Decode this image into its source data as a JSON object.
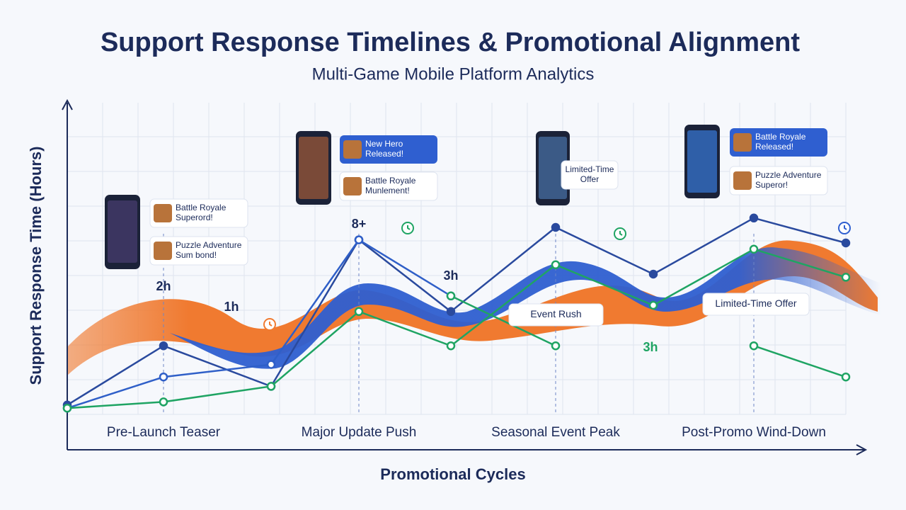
{
  "chart_data": {
    "type": "line",
    "title": "Support Response Timelines & Promotional Alignment",
    "subtitle": "Multi-Game Mobile Platform Analytics",
    "x_label": "Promotional Cycles",
    "y_label": "Support Response Time (Hours)",
    "categories": [
      null,
      "Pre-Launch Teaser",
      null,
      "Major Update Push",
      null,
      "Seasonal Event Peak",
      null,
      "Post-Promo Wind-Down",
      null
    ],
    "ylim": [
      0,
      10
    ],
    "grid": true,
    "series": [
      {
        "color": "#2a4a9e",
        "values": [
          0.3,
          2.2,
          0.9,
          5.6,
          3.3,
          6.0,
          4.5,
          6.3,
          5.5
        ]
      },
      {
        "color": "#2f5fc8",
        "values": [
          0.2,
          1.2,
          1.6,
          5.6,
          3.8,
          null,
          null,
          null,
          null
        ]
      },
      {
        "color": "#1fa463",
        "values": [
          0.2,
          0.4,
          0.9,
          3.3,
          2.2,
          4.8,
          3.5,
          5.3,
          4.4
        ]
      },
      {
        "color": "#1fa463",
        "values": [
          null,
          null,
          null,
          null,
          3.8,
          2.2,
          null,
          2.2,
          1.2
        ]
      }
    ],
    "annotations": [
      "2h",
      "1h",
      "8+",
      "3h",
      "3h",
      "Battle Royale Superord!",
      "Puzzle Adventure Sum bond!",
      "New Hero Released!",
      "Battle Royale Munlement!",
      "Limited-Time Offer",
      "Battle Royale Released!",
      "Puzzle Adventure Superor!",
      "Event Rush",
      "Limited-Time Offer"
    ]
  }
}
